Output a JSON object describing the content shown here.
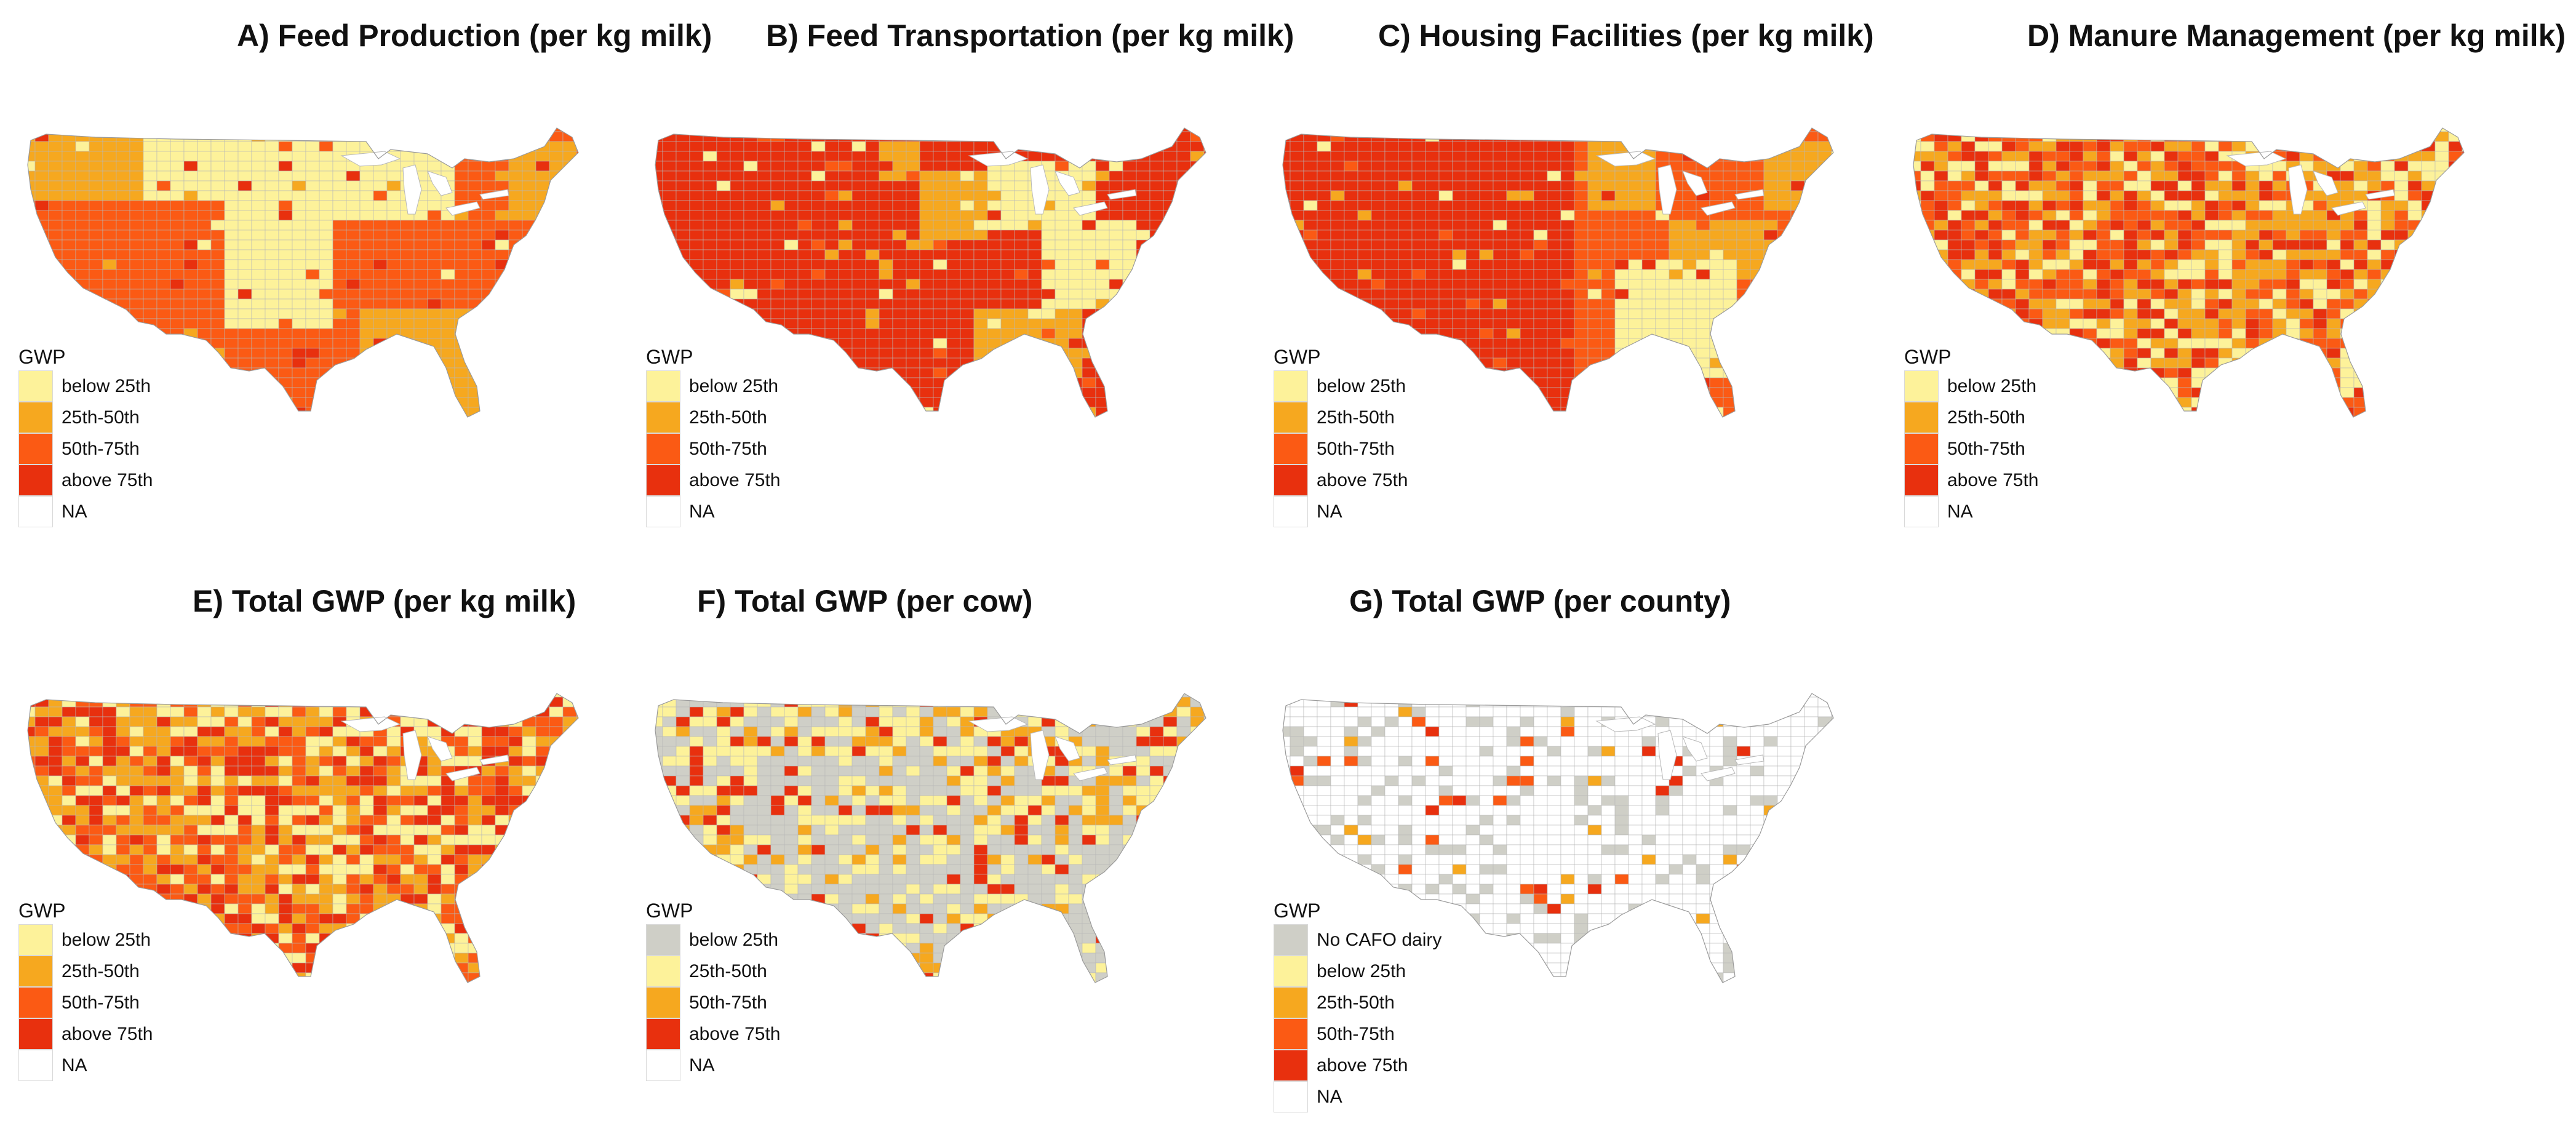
{
  "panels": {
    "A": {
      "title": "A) Feed Production (per kg milk)",
      "legend": {
        "title": "GWP",
        "items": [
          {
            "label": "below 25th",
            "color": "#fdf29a"
          },
          {
            "label": "25th-50th",
            "color": "#f6a81f"
          },
          {
            "label": "50th-75th",
            "color": "#fb5a14"
          },
          {
            "label": "above 75th",
            "color": "#e8300e"
          },
          {
            "label": "NA",
            "color": "#ffffff"
          }
        ]
      }
    },
    "B": {
      "title": "B) Feed Transportation (per kg milk)",
      "legend": {
        "title": "GWP",
        "items": [
          {
            "label": "below 25th",
            "color": "#fdf29a"
          },
          {
            "label": "25th-50th",
            "color": "#f6a81f"
          },
          {
            "label": "50th-75th",
            "color": "#fb5a14"
          },
          {
            "label": "above 75th",
            "color": "#e8300e"
          },
          {
            "label": "NA",
            "color": "#ffffff"
          }
        ]
      }
    },
    "C": {
      "title": "C) Housing Facilities (per kg milk)",
      "legend": {
        "title": "GWP",
        "items": [
          {
            "label": "below 25th",
            "color": "#fdf29a"
          },
          {
            "label": "25th-50th",
            "color": "#f6a81f"
          },
          {
            "label": "50th-75th",
            "color": "#fb5a14"
          },
          {
            "label": "above 75th",
            "color": "#e8300e"
          },
          {
            "label": "NA",
            "color": "#ffffff"
          }
        ]
      }
    },
    "D": {
      "title": "D) Manure Management (per kg milk)",
      "legend": {
        "title": "GWP",
        "items": [
          {
            "label": "below 25th",
            "color": "#fdf29a"
          },
          {
            "label": "25th-50th",
            "color": "#f6a81f"
          },
          {
            "label": "50th-75th",
            "color": "#fb5a14"
          },
          {
            "label": "above 75th",
            "color": "#e8300e"
          },
          {
            "label": "NA",
            "color": "#ffffff"
          }
        ]
      }
    },
    "E": {
      "title": "E) Total GWP (per kg milk)",
      "legend": {
        "title": "GWP",
        "items": [
          {
            "label": "below 25th",
            "color": "#fdf29a"
          },
          {
            "label": "25th-50th",
            "color": "#f6a81f"
          },
          {
            "label": "50th-75th",
            "color": "#fb5a14"
          },
          {
            "label": "above 75th",
            "color": "#e8300e"
          },
          {
            "label": "NA",
            "color": "#ffffff"
          }
        ]
      }
    },
    "F": {
      "title": "F) Total GWP (per cow)",
      "legend": {
        "title": "GWP",
        "items": [
          {
            "label": "below 25th",
            "color": "#cfcfc7"
          },
          {
            "label": "25th-50th",
            "color": "#fdf29a"
          },
          {
            "label": "50th-75th",
            "color": "#f6a81f"
          },
          {
            "label": "above 75th",
            "color": "#e8300e"
          },
          {
            "label": "NA",
            "color": "#ffffff"
          }
        ]
      }
    },
    "G": {
      "title": "G) Total GWP (per county)",
      "legend": {
        "title": "GWP",
        "items": [
          {
            "label": "No CAFO dairy",
            "color": "#cfcfc7"
          },
          {
            "label": "below 25th",
            "color": "#fdf29a"
          },
          {
            "label": "25th-50th",
            "color": "#f6a81f"
          },
          {
            "label": "50th-75th",
            "color": "#fb5a14"
          },
          {
            "label": "above 75th",
            "color": "#e8300e"
          },
          {
            "label": "NA",
            "color": "#ffffff"
          }
        ]
      }
    }
  },
  "palette": {
    "c0": "#fdf29a",
    "c1": "#f6a81f",
    "c2": "#fb5a14",
    "c3": "#e8300e",
    "grey": "#cfcfc7",
    "white": "#ffffff",
    "border": "#b8b8b8"
  }
}
